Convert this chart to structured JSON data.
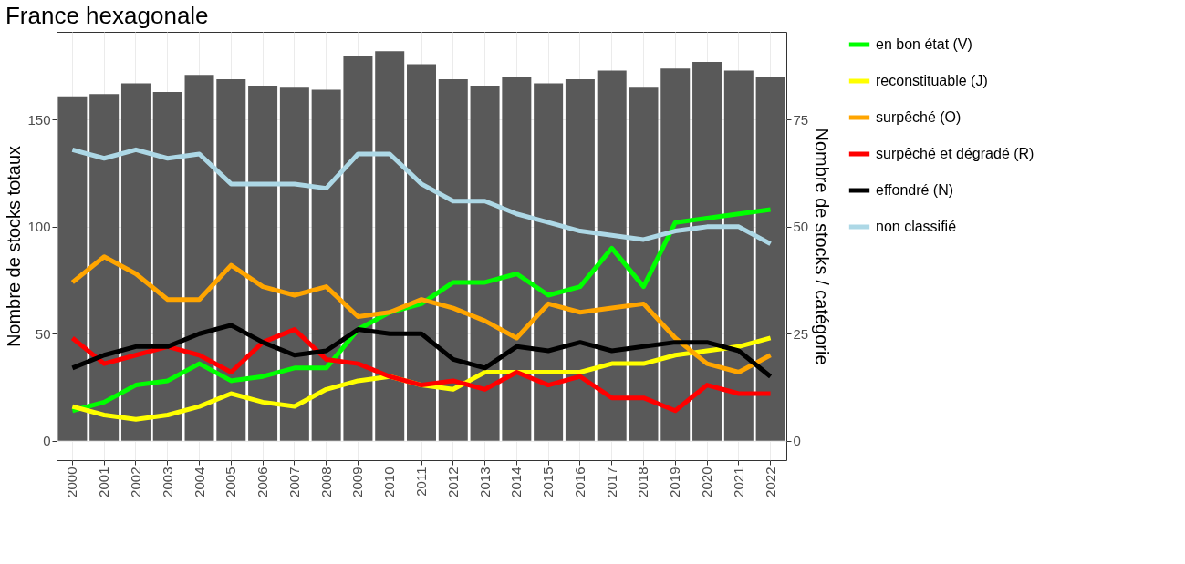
{
  "chart_data": {
    "type": "bar",
    "title": "France hexagonale",
    "ylabel": "Nombre de stocks totaux",
    "y2label": "Nombre de stocks / catégorie",
    "categories": [
      "2000",
      "2001",
      "2002",
      "2003",
      "2004",
      "2005",
      "2006",
      "2007",
      "2008",
      "2009",
      "2010",
      "2011",
      "2012",
      "2013",
      "2014",
      "2015",
      "2016",
      "2017",
      "2018",
      "2019",
      "2020",
      "2021",
      "2022"
    ],
    "series": [
      {
        "color": "#595959",
        "values": [
          161,
          162,
          167,
          163,
          171,
          169,
          166,
          165,
          164,
          180,
          182,
          176,
          169,
          166,
          170,
          167,
          169,
          173,
          165,
          174,
          177,
          173,
          170
        ]
      },
      {
        "type": "line",
        "axis": "y2",
        "name": "en bon état (V)",
        "color": "#00ff00",
        "values": [
          7,
          9,
          13,
          14,
          18,
          14,
          15,
          17,
          17,
          26,
          30,
          32,
          37,
          37,
          39,
          34,
          36,
          45,
          36,
          51,
          52,
          53,
          54
        ]
      },
      {
        "type": "line",
        "axis": "y2",
        "name": "reconstituable (J)",
        "color": "#ffff00",
        "values": [
          8,
          6,
          5,
          6,
          8,
          11,
          9,
          8,
          12,
          14,
          15,
          13,
          12,
          16,
          16,
          16,
          16,
          18,
          18,
          20,
          21,
          22,
          24
        ]
      },
      {
        "type": "line",
        "axis": "y2",
        "name": "surpêché (O)",
        "color": "#ffa500",
        "values": [
          37,
          43,
          39,
          33,
          33,
          41,
          36,
          34,
          36,
          29,
          30,
          33,
          31,
          28,
          24,
          32,
          30,
          31,
          32,
          24,
          18,
          16,
          20
        ]
      },
      {
        "type": "line",
        "axis": "y2",
        "name": "surpêché et dégradé (R)",
        "color": "#ff0000",
        "values": [
          24,
          18,
          20,
          22,
          20,
          16,
          23,
          26,
          19,
          18,
          15,
          13,
          14,
          12,
          16,
          13,
          15,
          10,
          10,
          7,
          13,
          11,
          11
        ]
      },
      {
        "type": "line",
        "axis": "y2",
        "name": "effondré (N)",
        "color": "#000000",
        "values": [
          17,
          20,
          22,
          22,
          25,
          27,
          23,
          20,
          21,
          26,
          25,
          25,
          19,
          17,
          22,
          21,
          23,
          21,
          22,
          23,
          23,
          21,
          15
        ]
      },
      {
        "type": "line",
        "axis": "y2",
        "name": "non classifié",
        "color": "#add8e6",
        "values": [
          68,
          66,
          68,
          66,
          67,
          60,
          60,
          60,
          59,
          67,
          67,
          60,
          56,
          56,
          53,
          51,
          49,
          48,
          47,
          49,
          50,
          50,
          46
        ]
      }
    ],
    "ylim": [
      -9.1,
      191.1
    ],
    "yticks": [
      0,
      50,
      100,
      150
    ],
    "y2lim": [
      -4.55,
      95.55
    ],
    "y2ticks": [
      0,
      25,
      50,
      75
    ],
    "grid": true,
    "legend": "right",
    "line_style": "solid"
  }
}
